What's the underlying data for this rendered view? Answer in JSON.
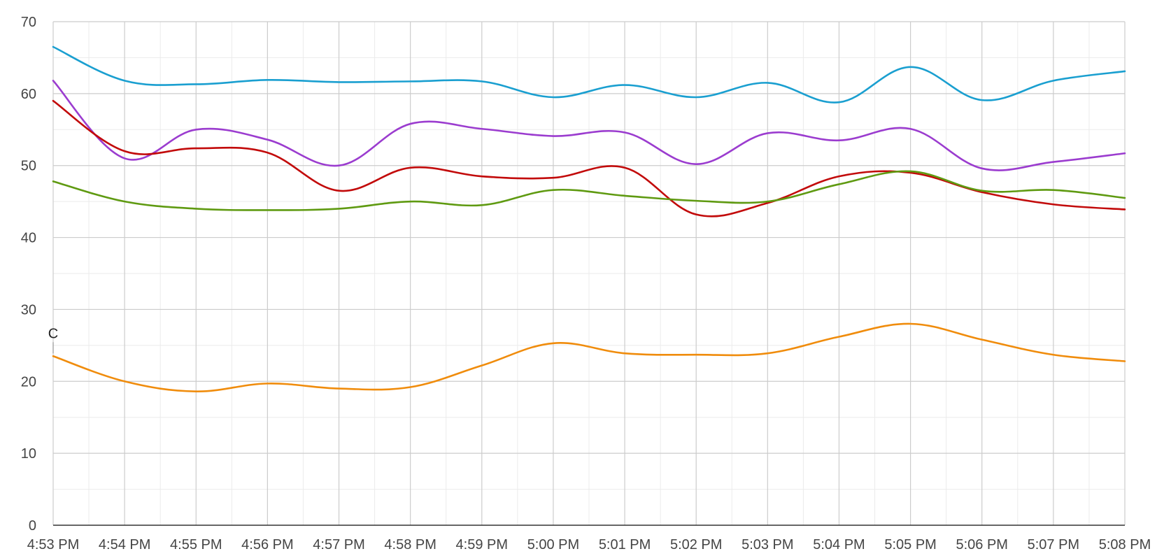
{
  "chart_data": {
    "type": "line",
    "title": "",
    "xlabel": "",
    "ylabel": "",
    "ylim": [
      0,
      70
    ],
    "y_ticks": [
      0,
      10,
      20,
      30,
      40,
      50,
      60,
      70
    ],
    "grid": true,
    "minor_grid": true,
    "legend": "none",
    "x_ticks": [
      "4:53 PM",
      "4:54 PM",
      "4:55 PM",
      "4:56 PM",
      "4:57 PM",
      "4:58 PM",
      "4:59 PM",
      "5:00 PM",
      "5:01 PM",
      "5:02 PM",
      "5:03 PM",
      "5:04 PM",
      "5:05 PM",
      "5:06 PM",
      "5:07 PM",
      "5:08 PM"
    ],
    "annotations": [
      {
        "text": "C",
        "x": "4:53 PM",
        "y": 23.5
      }
    ],
    "series": [
      {
        "color": "#1a9fd0",
        "values": [
          66.5,
          61.8,
          61.3,
          61.9,
          61.6,
          61.7,
          61.7,
          59.5,
          61.2,
          59.5,
          61.5,
          58.8,
          63.7,
          59.1,
          61.8,
          63.1
        ]
      },
      {
        "color": "#9b3ccf",
        "values": [
          61.8,
          51.0,
          55.0,
          53.6,
          50.0,
          55.8,
          55.1,
          54.1,
          54.6,
          50.2,
          54.5,
          53.5,
          55.1,
          49.6,
          50.5,
          51.7
        ]
      },
      {
        "color": "#c20a0a",
        "values": [
          59.0,
          52.0,
          52.4,
          51.8,
          46.5,
          49.7,
          48.5,
          48.3,
          49.7,
          43.2,
          44.8,
          48.5,
          49.0,
          46.3,
          44.6,
          43.9
        ]
      },
      {
        "color": "#5f9a11",
        "values": [
          47.8,
          45.0,
          44.0,
          43.8,
          44.0,
          45.0,
          44.5,
          46.6,
          45.8,
          45.1,
          45.0,
          47.4,
          49.2,
          46.5,
          46.6,
          45.5
        ]
      },
      {
        "color": "#f08c0c",
        "values": [
          23.5,
          20.0,
          18.6,
          19.7,
          19.0,
          19.2,
          22.2,
          25.3,
          23.9,
          23.7,
          23.9,
          26.2,
          28.0,
          25.8,
          23.7,
          22.8
        ]
      }
    ]
  }
}
